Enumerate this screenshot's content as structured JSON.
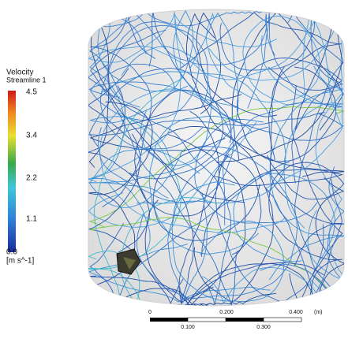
{
  "legend": {
    "title": "Velocity",
    "subtitle": "Streamline 1",
    "ticks": [
      "4.5",
      "3.4",
      "2.2",
      "1.1",
      "0.0"
    ],
    "unit": "[m s^-1]"
  },
  "scale_bar": {
    "labels": [
      "0",
      "0.200",
      "0.400",
      "(m)"
    ],
    "sub_labels": [
      "0.100",
      "0.300"
    ]
  }
}
